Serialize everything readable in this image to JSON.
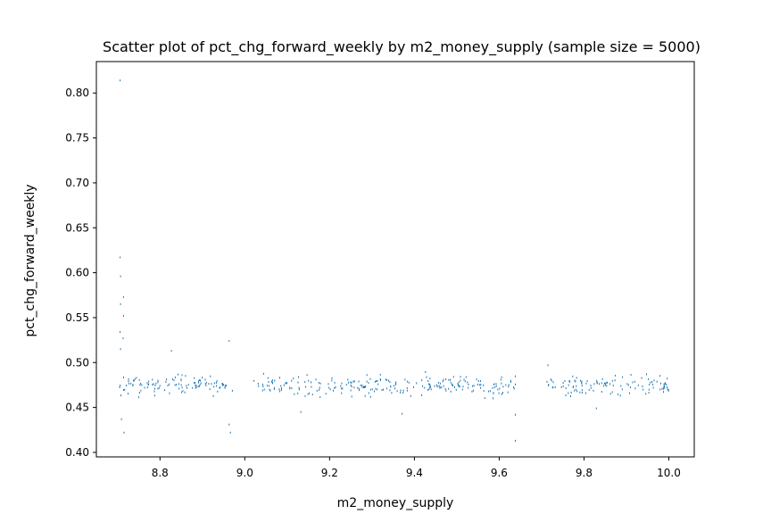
{
  "chart_data": {
    "type": "scatter",
    "title": "Scatter plot of pct_chg_forward_weekly by m2_money_supply (sample size = 5000)",
    "xlabel": "m2_money_supply",
    "ylabel": "pct_chg_forward_weekly",
    "xlim": [
      8.65,
      10.06
    ],
    "ylim": [
      0.395,
      0.835
    ],
    "xticks": [
      8.8,
      9.0,
      9.2,
      9.4,
      9.6,
      9.8,
      10.0
    ],
    "xtick_labels": [
      "8.8",
      "9.0",
      "9.2",
      "9.4",
      "9.6",
      "9.8",
      "10.0"
    ],
    "yticks": [
      0.4,
      0.45,
      0.5,
      0.55,
      0.6,
      0.65,
      0.7,
      0.75,
      0.8
    ],
    "ytick_labels": [
      "0.40",
      "0.45",
      "0.50",
      "0.55",
      "0.60",
      "0.65",
      "0.70",
      "0.75",
      "0.80"
    ],
    "grid": false,
    "marker_color": "#1f77b4",
    "x_clusters": [
      [
        8.7,
        8.76
      ],
      [
        8.76,
        8.86
      ],
      [
        8.86,
        8.97
      ],
      [
        9.02,
        9.07
      ],
      [
        9.08,
        9.13
      ],
      [
        9.14,
        9.18
      ],
      [
        9.19,
        9.29
      ],
      [
        9.29,
        9.39
      ],
      [
        9.39,
        9.49
      ],
      [
        9.49,
        9.59
      ],
      [
        9.59,
        9.64
      ],
      [
        9.71,
        9.73
      ],
      [
        9.73,
        9.79
      ],
      [
        9.79,
        9.83
      ],
      [
        9.83,
        9.89
      ],
      [
        9.9,
        10.0
      ]
    ],
    "main_band": [
      0.46,
      0.495
    ],
    "outliers": [
      {
        "x": 8.705,
        "y": 0.815
      },
      {
        "x": 8.705,
        "y": 0.618
      },
      {
        "x": 8.706,
        "y": 0.597
      },
      {
        "x": 8.713,
        "y": 0.574
      },
      {
        "x": 8.706,
        "y": 0.566
      },
      {
        "x": 8.713,
        "y": 0.553
      },
      {
        "x": 8.705,
        "y": 0.535
      },
      {
        "x": 8.712,
        "y": 0.528
      },
      {
        "x": 8.706,
        "y": 0.516
      },
      {
        "x": 8.708,
        "y": 0.438
      },
      {
        "x": 8.714,
        "y": 0.423
      },
      {
        "x": 8.826,
        "y": 0.514
      },
      {
        "x": 8.962,
        "y": 0.525
      },
      {
        "x": 8.965,
        "y": 0.423
      },
      {
        "x": 8.962,
        "y": 0.432
      },
      {
        "x": 9.131,
        "y": 0.446
      },
      {
        "x": 9.37,
        "y": 0.444
      },
      {
        "x": 9.637,
        "y": 0.414
      },
      {
        "x": 9.637,
        "y": 0.443
      },
      {
        "x": 9.714,
        "y": 0.498
      },
      {
        "x": 9.828,
        "y": 0.45
      }
    ]
  }
}
